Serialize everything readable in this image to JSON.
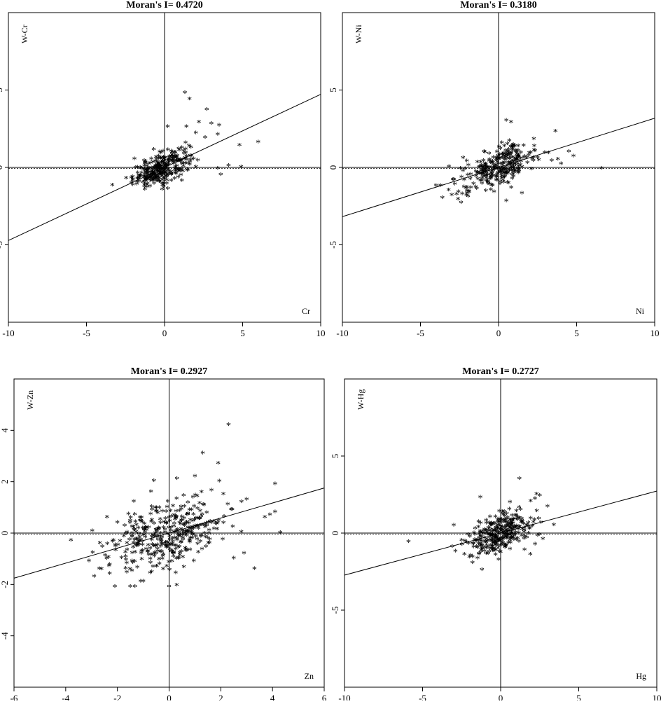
{
  "chart_data": [
    {
      "type": "scatter",
      "title": "Moran's I= 0.4720",
      "xlabel": "Cr",
      "ylabel": "W-Cr",
      "xlim": [
        -10,
        10
      ],
      "ylim": [
        -10,
        10
      ],
      "xticks": [
        -10,
        -5,
        0,
        5,
        10
      ],
      "yticks": [
        -5,
        0,
        5
      ],
      "slope": 0.472,
      "grid": false,
      "cloud": {
        "cx": -0.2,
        "cy": -0.1,
        "sx": 0.9,
        "sy": 0.6,
        "r": 0.6,
        "n": 320
      },
      "outliers": [
        [
          1.3,
          4.8
        ],
        [
          1.6,
          4.4
        ],
        [
          2.7,
          3.7
        ],
        [
          6.0,
          1.6
        ],
        [
          4.8,
          1.4
        ],
        [
          3.6,
          -0.5
        ],
        [
          4.9,
          0.0
        ],
        [
          3.0,
          2.8
        ],
        [
          2.2,
          2.9
        ],
        [
          0.2,
          2.6
        ],
        [
          1.4,
          2.6
        ],
        [
          3.4,
          2.1
        ],
        [
          2.6,
          1.9
        ],
        [
          3.5,
          2.7
        ],
        [
          2.0,
          2.2
        ],
        [
          4.1,
          0.1
        ],
        [
          3.4,
          -0.1
        ]
      ]
    },
    {
      "type": "scatter",
      "title": "Moran's I= 0.3180",
      "xlabel": "Ni",
      "ylabel": "W-Ni",
      "xlim": [
        -10,
        10
      ],
      "ylim": [
        -10,
        10
      ],
      "xticks": [
        -10,
        -5,
        0,
        5,
        10
      ],
      "yticks": [
        -5,
        0,
        5
      ],
      "slope": 0.318,
      "grid": false,
      "cloud": {
        "cx": 0.0,
        "cy": 0.0,
        "sx": 1.2,
        "sy": 0.75,
        "r": 0.55,
        "n": 300
      },
      "outliers": [
        [
          6.6,
          -0.1
        ],
        [
          4.8,
          0.7
        ],
        [
          4.5,
          1.0
        ],
        [
          0.5,
          3.0
        ],
        [
          0.8,
          2.9
        ],
        [
          -3.6,
          -2.0
        ],
        [
          -3.2,
          -1.5
        ],
        [
          -3.0,
          -1.8
        ],
        [
          -2.4,
          -2.3
        ],
        [
          0.5,
          -2.2
        ],
        [
          4.0,
          0.2
        ],
        [
          3.4,
          0.4
        ],
        [
          3.2,
          0.9
        ],
        [
          3.8,
          0.5
        ],
        [
          -4.0,
          -1.2
        ],
        [
          -2.8,
          -1.1
        ]
      ]
    },
    {
      "type": "scatter",
      "title": "Moran's I= 0.2927",
      "xlabel": "Zn",
      "ylabel": "W-Zn",
      "xlim": [
        -6,
        6
      ],
      "ylim": [
        -6,
        6
      ],
      "xticks": [
        -6,
        -4,
        -2,
        0,
        2,
        4,
        6
      ],
      "yticks": [
        -4,
        -2,
        0,
        2,
        4
      ],
      "slope": 0.2927,
      "grid": false,
      "cloud": {
        "cx": 0.0,
        "cy": -0.05,
        "sx": 1.1,
        "sy": 0.7,
        "r": 0.4,
        "n": 380
      },
      "outliers": [
        [
          2.3,
          4.2
        ],
        [
          1.3,
          3.1
        ],
        [
          1.9,
          2.7
        ],
        [
          4.1,
          1.9
        ],
        [
          4.1,
          0.8
        ],
        [
          4.3,
          0.0
        ],
        [
          -3.8,
          -0.3
        ],
        [
          -3.1,
          -1.1
        ],
        [
          -2.9,
          -1.7
        ],
        [
          -2.7,
          -1.4
        ],
        [
          -2.3,
          -1.6
        ],
        [
          -2.1,
          -2.1
        ],
        [
          -1.5,
          -2.1
        ],
        [
          0.0,
          -2.1
        ],
        [
          -1.1,
          -1.9
        ],
        [
          -1.0,
          -1.9
        ],
        [
          3.3,
          -1.4
        ],
        [
          3.0,
          1.3
        ],
        [
          2.8,
          1.2
        ],
        [
          3.7,
          0.6
        ],
        [
          2.5,
          -1.0
        ],
        [
          2.9,
          -0.8
        ],
        [
          3.9,
          0.7
        ],
        [
          1.0,
          2.2
        ],
        [
          0.3,
          2.1
        ],
        [
          2.4,
          0.9
        ],
        [
          -2.4,
          0.6
        ],
        [
          -2.0,
          0.4
        ],
        [
          -0.7,
          1.6
        ],
        [
          2.1,
          1.5
        ]
      ]
    },
    {
      "type": "scatter",
      "title": "Moran's I= 0.2727",
      "xlabel": "Hg",
      "ylabel": "W-Hg",
      "xlim": [
        -10,
        10
      ],
      "ylim": [
        -10,
        10
      ],
      "xticks": [
        -10,
        -5,
        0,
        5,
        10
      ],
      "yticks": [
        -5,
        0,
        5
      ],
      "slope": 0.2727,
      "grid": false,
      "cloud": {
        "cx": 0.0,
        "cy": 0.0,
        "sx": 1.05,
        "sy": 0.75,
        "r": 0.45,
        "n": 330
      },
      "outliers": [
        [
          -5.9,
          -0.6
        ],
        [
          1.2,
          3.5
        ],
        [
          -1.2,
          -2.4
        ],
        [
          3.0,
          1.7
        ],
        [
          2.3,
          2.5
        ],
        [
          2.5,
          2.4
        ],
        [
          -2.5,
          -0.5
        ],
        [
          -2.9,
          -1.2
        ],
        [
          -3.1,
          -0.9
        ],
        [
          2.7,
          -0.4
        ],
        [
          2.2,
          2.2
        ],
        [
          3.4,
          0.5
        ],
        [
          -1.3,
          2.3
        ],
        [
          1.9,
          -1.4
        ],
        [
          -2.0,
          -1.6
        ]
      ]
    }
  ]
}
